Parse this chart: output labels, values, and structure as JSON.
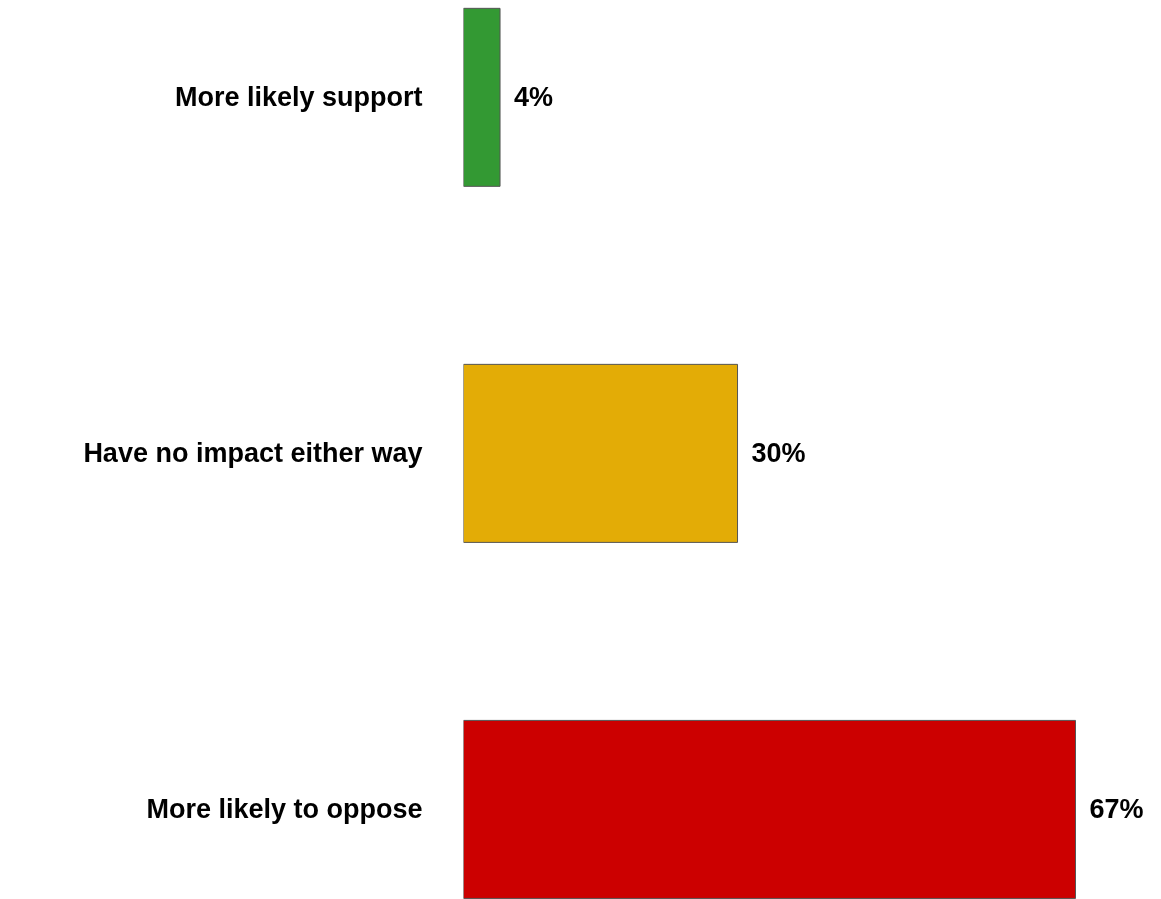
{
  "chart_data": {
    "type": "bar",
    "orientation": "horizontal",
    "categories": [
      "More likely support",
      "Have no impact either way",
      "More likely to oppose"
    ],
    "values": [
      4,
      30,
      67
    ],
    "colors": [
      "#339933",
      "#e3ac06",
      "#cc0000"
    ],
    "value_labels": [
      "4%",
      "30%",
      "67%"
    ]
  }
}
